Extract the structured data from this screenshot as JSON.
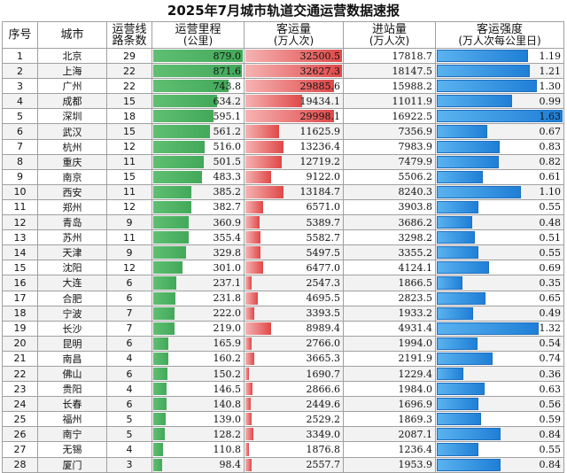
{
  "title": "2025年7月城市轨道交通运营数据速报",
  "headers": {
    "rank": "序号",
    "city": "城市",
    "lines": [
      "运营线",
      "路条数"
    ],
    "km": [
      "运营里程",
      "(公里)"
    ],
    "pax": [
      "客运量",
      "(万人次)"
    ],
    "ent": [
      "进站量",
      "(万人次)"
    ],
    "int": [
      "客运强度",
      "(万人次每公里日)"
    ]
  },
  "rows": [
    {
      "rank": "1",
      "city": "北京",
      "lines": "29",
      "km": "879.0",
      "pax": "32500.5",
      "ent": "17818.7",
      "int": "1.19"
    },
    {
      "rank": "2",
      "city": "上海",
      "lines": "22",
      "km": "871.6",
      "pax": "32627.3",
      "ent": "18147.5",
      "int": "1.21"
    },
    {
      "rank": "3",
      "city": "广州",
      "lines": "22",
      "km": "743.8",
      "pax": "29885.6",
      "ent": "15988.2",
      "int": "1.30"
    },
    {
      "rank": "4",
      "city": "成都",
      "lines": "15",
      "km": "634.2",
      "pax": "19434.1",
      "ent": "11011.9",
      "int": "0.99"
    },
    {
      "rank": "5",
      "city": "深圳",
      "lines": "18",
      "km": "595.1",
      "pax": "29998.1",
      "ent": "16922.5",
      "int": "1.63"
    },
    {
      "rank": "6",
      "city": "武汉",
      "lines": "15",
      "km": "561.2",
      "pax": "11625.9",
      "ent": "7356.9",
      "int": "0.67"
    },
    {
      "rank": "7",
      "city": "杭州",
      "lines": "12",
      "km": "516.0",
      "pax": "13236.4",
      "ent": "7983.9",
      "int": "0.83"
    },
    {
      "rank": "8",
      "city": "重庆",
      "lines": "11",
      "km": "501.5",
      "pax": "12719.2",
      "ent": "7479.9",
      "int": "0.82"
    },
    {
      "rank": "9",
      "city": "南京",
      "lines": "15",
      "km": "483.3",
      "pax": "9122.0",
      "ent": "5506.2",
      "int": "0.61"
    },
    {
      "rank": "10",
      "city": "西安",
      "lines": "11",
      "km": "385.2",
      "pax": "13184.7",
      "ent": "8240.3",
      "int": "1.10"
    },
    {
      "rank": "11",
      "city": "郑州",
      "lines": "12",
      "km": "382.7",
      "pax": "6571.0",
      "ent": "3903.8",
      "int": "0.55"
    },
    {
      "rank": "12",
      "city": "青岛",
      "lines": "9",
      "km": "360.9",
      "pax": "5389.7",
      "ent": "3686.2",
      "int": "0.48"
    },
    {
      "rank": "13",
      "city": "苏州",
      "lines": "11",
      "km": "355.4",
      "pax": "5582.7",
      "ent": "3298.2",
      "int": "0.51"
    },
    {
      "rank": "14",
      "city": "天津",
      "lines": "9",
      "km": "329.8",
      "pax": "5497.5",
      "ent": "3355.2",
      "int": "0.55"
    },
    {
      "rank": "15",
      "city": "沈阳",
      "lines": "12",
      "km": "301.0",
      "pax": "6477.0",
      "ent": "4124.1",
      "int": "0.69"
    },
    {
      "rank": "16",
      "city": "大连",
      "lines": "6",
      "km": "237.1",
      "pax": "2547.3",
      "ent": "1866.5",
      "int": "0.35"
    },
    {
      "rank": "17",
      "city": "合肥",
      "lines": "6",
      "km": "231.8",
      "pax": "4695.5",
      "ent": "2823.5",
      "int": "0.65"
    },
    {
      "rank": "18",
      "city": "宁波",
      "lines": "7",
      "km": "222.0",
      "pax": "3393.5",
      "ent": "1933.2",
      "int": "0.49"
    },
    {
      "rank": "19",
      "city": "长沙",
      "lines": "7",
      "km": "219.0",
      "pax": "8989.4",
      "ent": "4931.4",
      "int": "1.32"
    },
    {
      "rank": "20",
      "city": "昆明",
      "lines": "6",
      "km": "165.9",
      "pax": "2766.0",
      "ent": "1994.0",
      "int": "0.54"
    },
    {
      "rank": "21",
      "city": "南昌",
      "lines": "4",
      "km": "160.2",
      "pax": "3665.3",
      "ent": "2191.9",
      "int": "0.74"
    },
    {
      "rank": "22",
      "city": "佛山",
      "lines": "6",
      "km": "150.2",
      "pax": "1690.7",
      "ent": "1229.4",
      "int": "0.36"
    },
    {
      "rank": "23",
      "city": "贵阳",
      "lines": "4",
      "km": "146.5",
      "pax": "2866.6",
      "ent": "1984.0",
      "int": "0.63"
    },
    {
      "rank": "24",
      "city": "长春",
      "lines": "6",
      "km": "140.8",
      "pax": "2449.6",
      "ent": "1696.9",
      "int": "0.56"
    },
    {
      "rank": "25",
      "city": "福州",
      "lines": "5",
      "km": "139.0",
      "pax": "2529.2",
      "ent": "1869.3",
      "int": "0.59"
    },
    {
      "rank": "26",
      "city": "南宁",
      "lines": "5",
      "km": "128.2",
      "pax": "3349.0",
      "ent": "2087.1",
      "int": "0.84"
    },
    {
      "rank": "27",
      "city": "无锡",
      "lines": "4",
      "km": "110.8",
      "pax": "1876.8",
      "ent": "1236.4",
      "int": "0.55"
    },
    {
      "rank": "28",
      "city": "厦门",
      "lines": "3",
      "km": "98.4",
      "pax": "2557.7",
      "ent": "1953.9",
      "int": "0.84"
    }
  ]
}
